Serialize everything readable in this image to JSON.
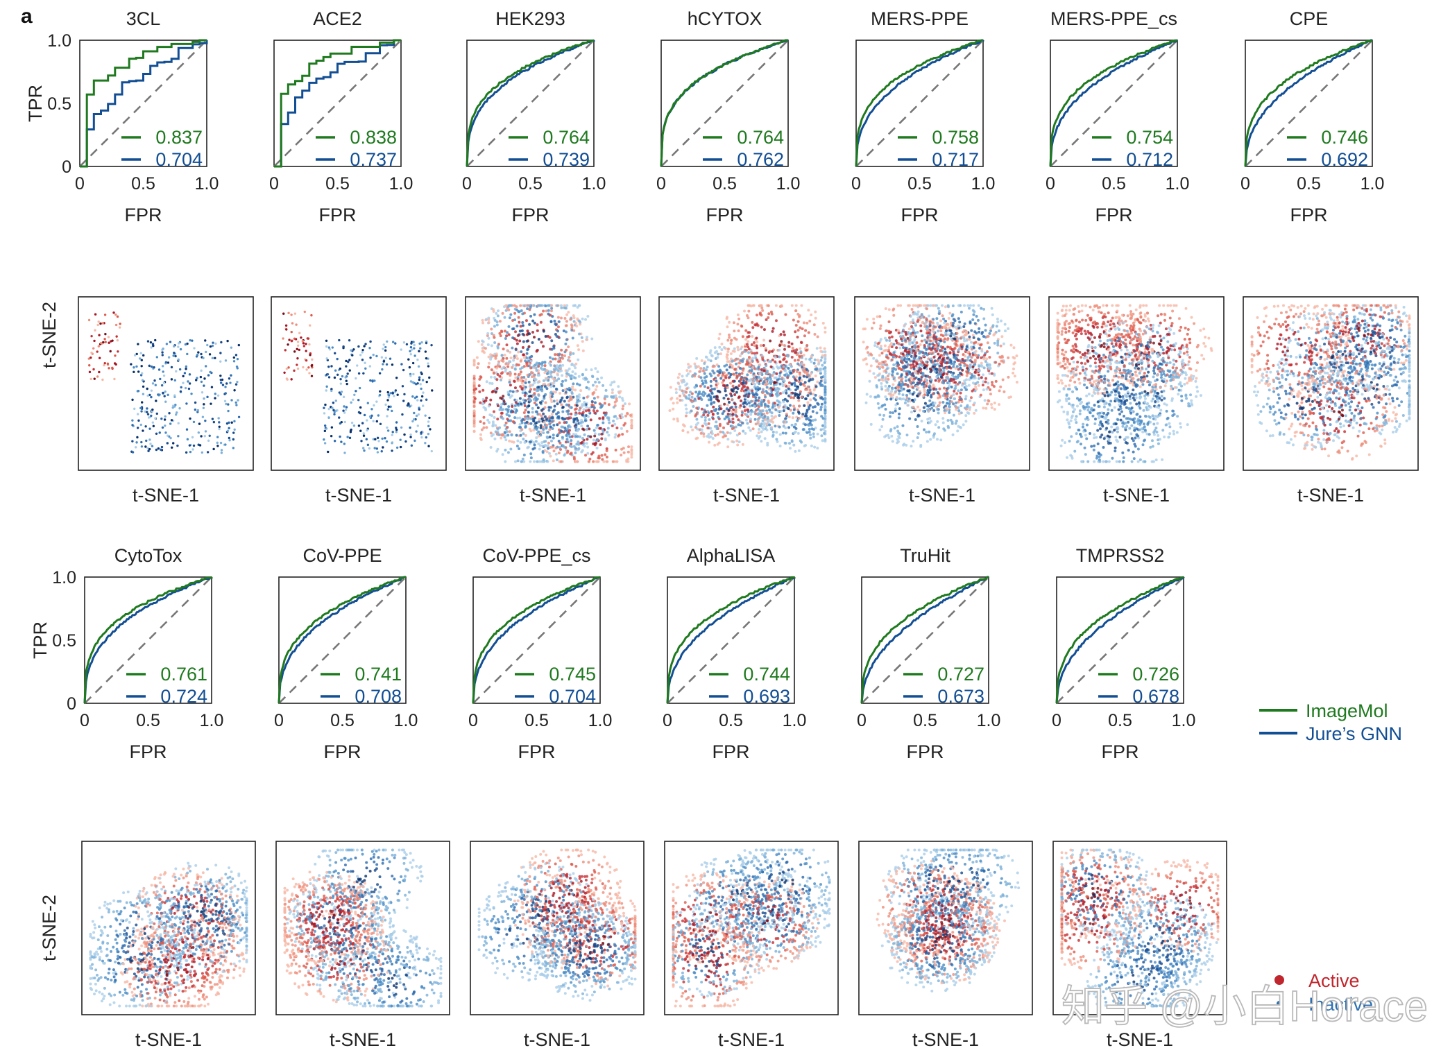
{
  "panel_label": "a",
  "colors": {
    "imagemol": "#1f7a1f",
    "gnn": "#124e94",
    "active": "#c0262d",
    "inactive": "#2e6fb0"
  },
  "axis_text": {
    "tpr": "TPR",
    "fpr": "FPR",
    "tsne1": "t-SNE-1",
    "tsne2": "t-SNE-2",
    "ticks": [
      "0",
      "0.5",
      "1.0"
    ]
  },
  "legend": {
    "imagemol": "ImageMol",
    "gnn": "Jure’s GNN",
    "active": "Active",
    "inactive": "Inactive"
  },
  "watermark": "知乎 @小白Horace",
  "chart_data": [
    {
      "type": "line",
      "title": "3CL",
      "xlabel": "FPR",
      "ylabel": "TPR",
      "xlim": [
        0,
        1
      ],
      "ylim": [
        0,
        1
      ],
      "series": [
        {
          "name": "ImageMol",
          "auc": "0.837"
        },
        {
          "name": "Jure’s GNN",
          "auc": "0.704"
        }
      ]
    },
    {
      "type": "line",
      "title": "ACE2",
      "xlabel": "FPR",
      "ylabel": "TPR",
      "xlim": [
        0,
        1
      ],
      "ylim": [
        0,
        1
      ],
      "series": [
        {
          "name": "ImageMol",
          "auc": "0.838"
        },
        {
          "name": "Jure’s GNN",
          "auc": "0.737"
        }
      ]
    },
    {
      "type": "line",
      "title": "HEK293",
      "xlabel": "FPR",
      "ylabel": "TPR",
      "xlim": [
        0,
        1
      ],
      "ylim": [
        0,
        1
      ],
      "series": [
        {
          "name": "ImageMol",
          "auc": "0.764"
        },
        {
          "name": "Jure’s GNN",
          "auc": "0.739"
        }
      ]
    },
    {
      "type": "line",
      "title": "hCYTOX",
      "xlabel": "FPR",
      "ylabel": "TPR",
      "xlim": [
        0,
        1
      ],
      "ylim": [
        0,
        1
      ],
      "series": [
        {
          "name": "ImageMol",
          "auc": "0.764"
        },
        {
          "name": "Jure’s GNN",
          "auc": "0.762"
        }
      ]
    },
    {
      "type": "line",
      "title": "MERS-PPE",
      "xlabel": "FPR",
      "ylabel": "TPR",
      "xlim": [
        0,
        1
      ],
      "ylim": [
        0,
        1
      ],
      "series": [
        {
          "name": "ImageMol",
          "auc": "0.758"
        },
        {
          "name": "Jure’s GNN",
          "auc": "0.717"
        }
      ]
    },
    {
      "type": "line",
      "title": "MERS-PPE_cs",
      "xlabel": "FPR",
      "ylabel": "TPR",
      "xlim": [
        0,
        1
      ],
      "ylim": [
        0,
        1
      ],
      "series": [
        {
          "name": "ImageMol",
          "auc": "0.754"
        },
        {
          "name": "Jure’s GNN",
          "auc": "0.712"
        }
      ]
    },
    {
      "type": "line",
      "title": "CPE",
      "xlabel": "FPR",
      "ylabel": "TPR",
      "xlim": [
        0,
        1
      ],
      "ylim": [
        0,
        1
      ],
      "series": [
        {
          "name": "ImageMol",
          "auc": "0.746"
        },
        {
          "name": "Jure’s GNN",
          "auc": "0.692"
        }
      ]
    },
    {
      "type": "line",
      "title": "CytoTox",
      "xlabel": "FPR",
      "ylabel": "TPR",
      "xlim": [
        0,
        1
      ],
      "ylim": [
        0,
        1
      ],
      "series": [
        {
          "name": "ImageMol",
          "auc": "0.761"
        },
        {
          "name": "Jure’s GNN",
          "auc": "0.724"
        }
      ]
    },
    {
      "type": "line",
      "title": "CoV-PPE",
      "xlabel": "FPR",
      "ylabel": "TPR",
      "xlim": [
        0,
        1
      ],
      "ylim": [
        0,
        1
      ],
      "series": [
        {
          "name": "ImageMol",
          "auc": "0.741"
        },
        {
          "name": "Jure’s GNN",
          "auc": "0.708"
        }
      ]
    },
    {
      "type": "line",
      "title": "CoV-PPE_cs",
      "xlabel": "FPR",
      "ylabel": "TPR",
      "xlim": [
        0,
        1
      ],
      "ylim": [
        0,
        1
      ],
      "series": [
        {
          "name": "ImageMol",
          "auc": "0.745"
        },
        {
          "name": "Jure’s GNN",
          "auc": "0.704"
        }
      ]
    },
    {
      "type": "line",
      "title": "AlphaLISA",
      "xlabel": "FPR",
      "ylabel": "TPR",
      "xlim": [
        0,
        1
      ],
      "ylim": [
        0,
        1
      ],
      "series": [
        {
          "name": "ImageMol",
          "auc": "0.744"
        },
        {
          "name": "Jure’s GNN",
          "auc": "0.693"
        }
      ]
    },
    {
      "type": "line",
      "title": "TruHit",
      "xlabel": "FPR",
      "ylabel": "TPR",
      "xlim": [
        0,
        1
      ],
      "ylim": [
        0,
        1
      ],
      "series": [
        {
          "name": "ImageMol",
          "auc": "0.727"
        },
        {
          "name": "Jure’s GNN",
          "auc": "0.673"
        }
      ]
    },
    {
      "type": "line",
      "title": "TMPRSS2",
      "xlabel": "FPR",
      "ylabel": "TPR",
      "xlim": [
        0,
        1
      ],
      "ylim": [
        0,
        1
      ],
      "series": [
        {
          "name": "ImageMol",
          "auc": "0.726"
        },
        {
          "name": "Jure’s GNN",
          "auc": "0.678"
        }
      ]
    }
  ]
}
